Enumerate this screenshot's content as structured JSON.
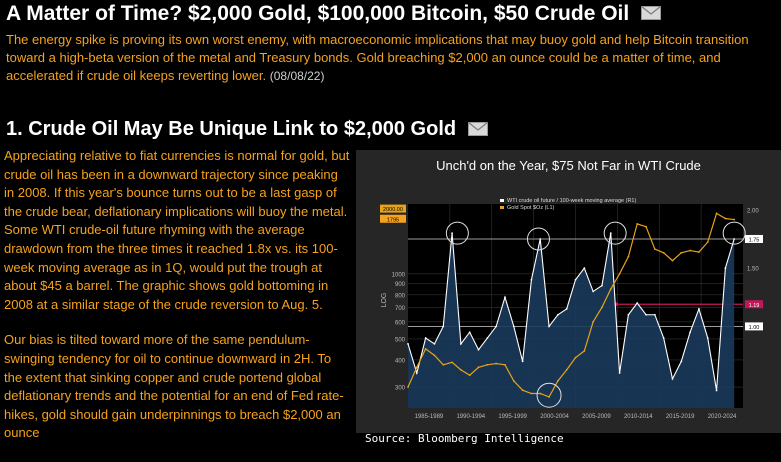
{
  "article": {
    "title": "A Matter of Time? $2,000 Gold, $100,000 Bitcoin, $50 Crude Oil",
    "summary": "The energy spike is proving its own worst enemy, with macroeconomic implications that may buoy gold and help Bitcoin transition toward a high-beta version of the metal and Treasury bonds. Gold breaching $2,000 an ounce could be a matter of time, and accelerated if crude oil keeps reverting lower.",
    "date": "(08/08/22)"
  },
  "section": {
    "heading": "1. Crude Oil May Be Unique Link to $2,000 Gold",
    "paragraphs": [
      "Appreciating relative to fiat currencies is normal for gold, but crude oil has been in a downward trajectory since peaking in 2008. If this year's bounce turns out to be a last gasp of the crude bear, deflationary implications will buoy the metal. Some WTI crude-oil future rhyming with the average drawdown from the three times it reached 1.8x vs. its 100-week moving average as in 1Q, would put the trough at about $45 a barrel. The graphic shows gold bottoming in 2008 at a similar stage of the crude reversion to Aug. 5.",
      "Our bias is tilted toward more of the same pendulum-swinging tendency for oil to continue downward in 2H. To the extent that sinking copper and crude portend global deflationary trends and the potential for an end of Fed rate-hikes, gold should gain underpinnings to breach $2,000 an ounce"
    ]
  },
  "icons": {
    "mail": "envelope-icon"
  },
  "colors": {
    "accent": "#f6a21c",
    "heading": "#ffffff",
    "background": "#000000",
    "chart_bg": "#262626",
    "gold_line": "#e8a317",
    "oil_line": "#ffffff",
    "oil_fill": "#1b3a5c",
    "marker": "#c2185b"
  },
  "chart_data": {
    "type": "line",
    "title": "Unch'd on the Year, $75 Not Far in WTI Crude",
    "legend": [
      "WTI crude oil future / 100-week moving average (R1)",
      "Gold Spot $Oz (L1)"
    ],
    "legend_position": "top-left",
    "x_tick_labels": [
      "1985-1989",
      "1990-1994",
      "1995-1999",
      "2000-2004",
      "2005-2009",
      "2010-2014",
      "2015-2019",
      "2020-2024"
    ],
    "y_left_label": "LOG",
    "y_left_ticks": [
      "1000",
      "900",
      "800",
      "700",
      "600",
      "500",
      "400",
      "300"
    ],
    "y_left_badges": [
      "2000.00",
      "1795"
    ],
    "y_right_ticks": [
      "2.00",
      "1.50",
      "1.00"
    ],
    "y_right_badges": [
      "1.75",
      "1.19",
      "1.00"
    ],
    "grid": true,
    "annotations": [
      "circled oil peaks near 1990, 1999, 2008, 2022",
      "circled gold trough near 2001"
    ],
    "series": [
      {
        "name": "Gold Spot $Oz (L1)",
        "axis": "left",
        "x": [
          1985,
          1986,
          1987,
          1988,
          1989,
          1990,
          1991,
          1992,
          1993,
          1994,
          1995,
          1996,
          1997,
          1998,
          1999,
          2000,
          2001,
          2002,
          2003,
          2004,
          2005,
          2006,
          2007,
          2008,
          2009,
          2010,
          2011,
          2012,
          2013,
          2014,
          2015,
          2016,
          2017,
          2018,
          2019,
          2020,
          2021,
          2022
        ],
        "values": [
          300,
          370,
          450,
          420,
          380,
          390,
          360,
          340,
          370,
          380,
          385,
          380,
          320,
          290,
          280,
          280,
          270,
          320,
          360,
          410,
          440,
          600,
          700,
          850,
          1000,
          1200,
          1700,
          1650,
          1300,
          1250,
          1150,
          1250,
          1280,
          1260,
          1400,
          1900,
          1800,
          1780
        ]
      },
      {
        "name": "WTI crude oil future / 100-week moving average (R1)",
        "axis": "right",
        "x": [
          1985,
          1986,
          1987,
          1988,
          1989,
          1990,
          1991,
          1992,
          1993,
          1994,
          1995,
          1996,
          1997,
          1998,
          1999,
          2000,
          2001,
          2002,
          2003,
          2004,
          2005,
          2006,
          2007,
          2008,
          2009,
          2010,
          2011,
          2012,
          2013,
          2014,
          2015,
          2016,
          2017,
          2018,
          2019,
          2020,
          2021,
          2022
        ],
        "values": [
          0.85,
          0.6,
          0.9,
          0.85,
          1.0,
          1.8,
          0.85,
          0.95,
          0.8,
          0.9,
          1.0,
          1.25,
          1.0,
          0.7,
          1.4,
          1.75,
          1.0,
          1.1,
          1.15,
          1.4,
          1.5,
          1.3,
          1.35,
          1.8,
          0.6,
          1.1,
          1.2,
          1.1,
          1.1,
          0.9,
          0.55,
          0.7,
          0.95,
          1.15,
          0.9,
          0.45,
          1.5,
          1.75
        ]
      }
    ]
  },
  "source": "Source: Bloomberg Intelligence"
}
